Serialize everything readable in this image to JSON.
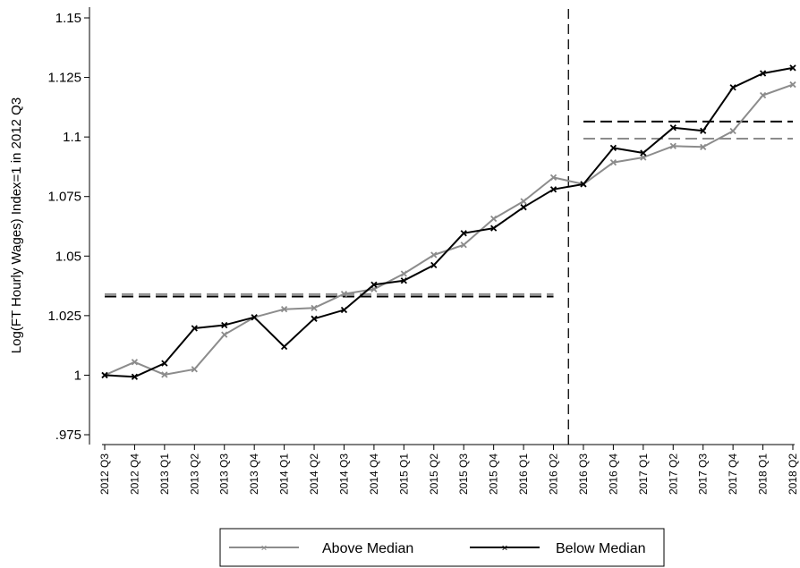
{
  "chart_data": {
    "type": "line",
    "title": "",
    "xlabel": "",
    "ylabel": "Log(FT Hourly Wages) Index=1 in 2012 Q3",
    "ylim": [
      0.975,
      1.15
    ],
    "yticks": [
      0.975,
      1,
      1.025,
      1.05,
      1.075,
      1.1,
      1.125,
      1.15
    ],
    "ytick_labels": [
      ".975",
      "1",
      "1.025",
      "1.05",
      "1.075",
      "1.1",
      "1.125",
      "1.15"
    ],
    "categories": [
      "2012 Q3",
      "2012 Q4",
      "2013 Q1",
      "2013 Q2",
      "2013 Q3",
      "2013 Q4",
      "2014 Q1",
      "2014 Q2",
      "2014 Q3",
      "2014 Q4",
      "2015 Q1",
      "2015 Q2",
      "2015 Q3",
      "2015 Q4",
      "2016 Q1",
      "2016 Q2",
      "2016 Q3",
      "2016 Q4",
      "2017 Q1",
      "2017 Q2",
      "2017 Q3",
      "2017 Q4",
      "2018 Q1",
      "2018 Q2"
    ],
    "series": [
      {
        "name": "Above Median",
        "color": "#8c8c8c",
        "values": [
          1.0,
          1.0055,
          1.0002,
          1.0025,
          1.017,
          1.0243,
          1.0277,
          1.0282,
          1.0341,
          1.0361,
          1.0426,
          1.0505,
          1.0547,
          1.0657,
          1.073,
          1.083,
          1.0802,
          1.0893,
          1.0914,
          1.0962,
          1.0958,
          1.1025,
          1.1175,
          1.122
        ]
      },
      {
        "name": "Below Median",
        "color": "#000000",
        "values": [
          1.0,
          0.9993,
          1.005,
          1.0197,
          1.021,
          1.0243,
          1.012,
          1.0237,
          1.0274,
          1.038,
          1.0397,
          1.0462,
          1.0596,
          1.0617,
          1.0705,
          1.078,
          1.0802,
          1.0954,
          1.0933,
          1.1039,
          1.1026,
          1.1208,
          1.1267,
          1.129
        ]
      }
    ],
    "reference_lines": [
      {
        "series": "Above Median",
        "color": "#8c8c8c",
        "from": "2012 Q3",
        "to": "2016 Q2",
        "value": 1.034
      },
      {
        "series": "Below Median",
        "color": "#000000",
        "from": "2012 Q3",
        "to": "2016 Q2",
        "value": 1.033
      },
      {
        "series": "Above Median",
        "color": "#8c8c8c",
        "from": "2016 Q3",
        "to": "2018 Q2",
        "value": 1.0993
      },
      {
        "series": "Below Median",
        "color": "#000000",
        "from": "2016 Q3",
        "to": "2018 Q2",
        "value": 1.1065
      }
    ],
    "vertical_break_after": "2016 Q2",
    "grid": false,
    "legend_placement": "bottom"
  }
}
